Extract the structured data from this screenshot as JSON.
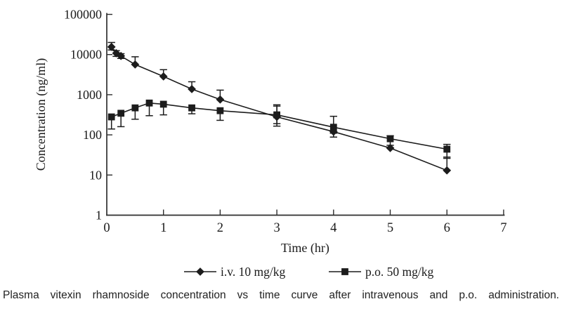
{
  "figure": {
    "caption": "Plasma vitexin rhamnoside concentration vs time curve after intravenous and p.o. administration."
  },
  "colors": {
    "line": "#1c1c1c",
    "axis": "#2e2e2e",
    "text": "#1a1a1a"
  },
  "chart_data": {
    "type": "line",
    "title": "",
    "xlabel": "Time (hr)",
    "ylabel": "Concentration (ng/ml)",
    "xlim": [
      0,
      7
    ],
    "x_ticks": [
      0,
      1,
      2,
      3,
      4,
      5,
      6,
      7
    ],
    "y_scale": "log",
    "ylim": [
      1,
      100000
    ],
    "y_ticks": [
      1,
      10,
      100,
      1000,
      10000,
      100000
    ],
    "y_tick_labels": [
      "1",
      "10",
      "100",
      "1000",
      "10000",
      "100000"
    ],
    "grid": false,
    "legend_position": "bottom",
    "series": [
      {
        "name": "i.v. 10 mg/kg",
        "marker": "diamond",
        "points": [
          {
            "t": 0.083,
            "c": 15500,
            "hi": 20000,
            "lo": 13000
          },
          {
            "t": 0.167,
            "c": 10800,
            "hi": 12500,
            "lo": 9000
          },
          {
            "t": 0.25,
            "c": 9200,
            "hi": 10500,
            "lo": 8000
          },
          {
            "t": 0.5,
            "c": 5650,
            "hi": 8800,
            "lo": null
          },
          {
            "t": 1,
            "c": 2850,
            "hi": 4200,
            "lo": null
          },
          {
            "t": 1.5,
            "c": 1380,
            "hi": 2100,
            "lo": null
          },
          {
            "t": 2,
            "c": 760,
            "hi": 1300,
            "lo": null
          },
          {
            "t": 3,
            "c": 280,
            "hi": 520,
            "lo": 165
          },
          {
            "t": 4,
            "c": 120,
            "hi": null,
            "lo": 88
          },
          {
            "t": 5,
            "c": 47,
            "hi": null,
            "lo": null
          },
          {
            "t": 6,
            "c": 13,
            "hi": 28,
            "lo": null
          }
        ]
      },
      {
        "name": "p.o. 50 mg/kg",
        "marker": "square",
        "points": [
          {
            "t": 0.083,
            "c": 280,
            "hi": null,
            "lo": 140
          },
          {
            "t": 0.25,
            "c": 345,
            "hi": null,
            "lo": 160
          },
          {
            "t": 0.5,
            "c": 470,
            "hi": null,
            "lo": 245
          },
          {
            "t": 0.75,
            "c": 620,
            "hi": null,
            "lo": 300
          },
          {
            "t": 1,
            "c": 580,
            "hi": null,
            "lo": 315
          },
          {
            "t": 1.5,
            "c": 470,
            "hi": null,
            "lo": 335
          },
          {
            "t": 2,
            "c": 400,
            "hi": null,
            "lo": 230
          },
          {
            "t": 3,
            "c": 315,
            "hi": 560,
            "lo": 190
          },
          {
            "t": 4,
            "c": 155,
            "hi": 290,
            "lo": 110
          },
          {
            "t": 5,
            "c": 80,
            "hi": 95,
            "lo": 55
          },
          {
            "t": 6,
            "c": 44,
            "hi": 58,
            "lo": 26
          }
        ]
      }
    ]
  }
}
